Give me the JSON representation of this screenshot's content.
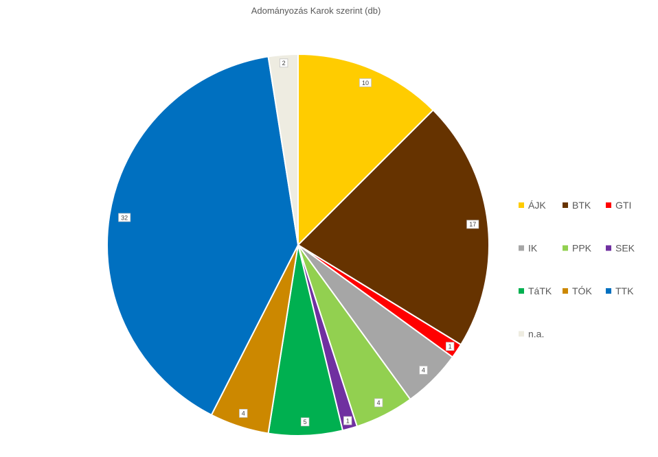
{
  "chart_data": {
    "type": "pie",
    "title": "Adományozás Karok szerint (db)",
    "categories": [
      "ÁJK",
      "BTK",
      "GTI",
      "IK",
      "PPK",
      "SEK",
      "TáTK",
      "TÓK",
      "TTK",
      "n.a."
    ],
    "values": [
      10,
      17,
      1,
      4,
      4,
      1,
      5,
      4,
      32,
      2
    ],
    "colors": [
      "#FFCC00",
      "#663300",
      "#FF0000",
      "#A6A6A6",
      "#92D050",
      "#7030A0",
      "#00B050",
      "#CC8800",
      "#0070C0",
      "#EEECE1"
    ],
    "data_labels": [
      "10",
      "17",
      "1",
      "4",
      "4",
      "1",
      "5",
      "4",
      "32",
      "2"
    ],
    "start_angle_deg": 0,
    "direction": "clockwise",
    "legend_position": "right",
    "legend_columns": 3
  }
}
